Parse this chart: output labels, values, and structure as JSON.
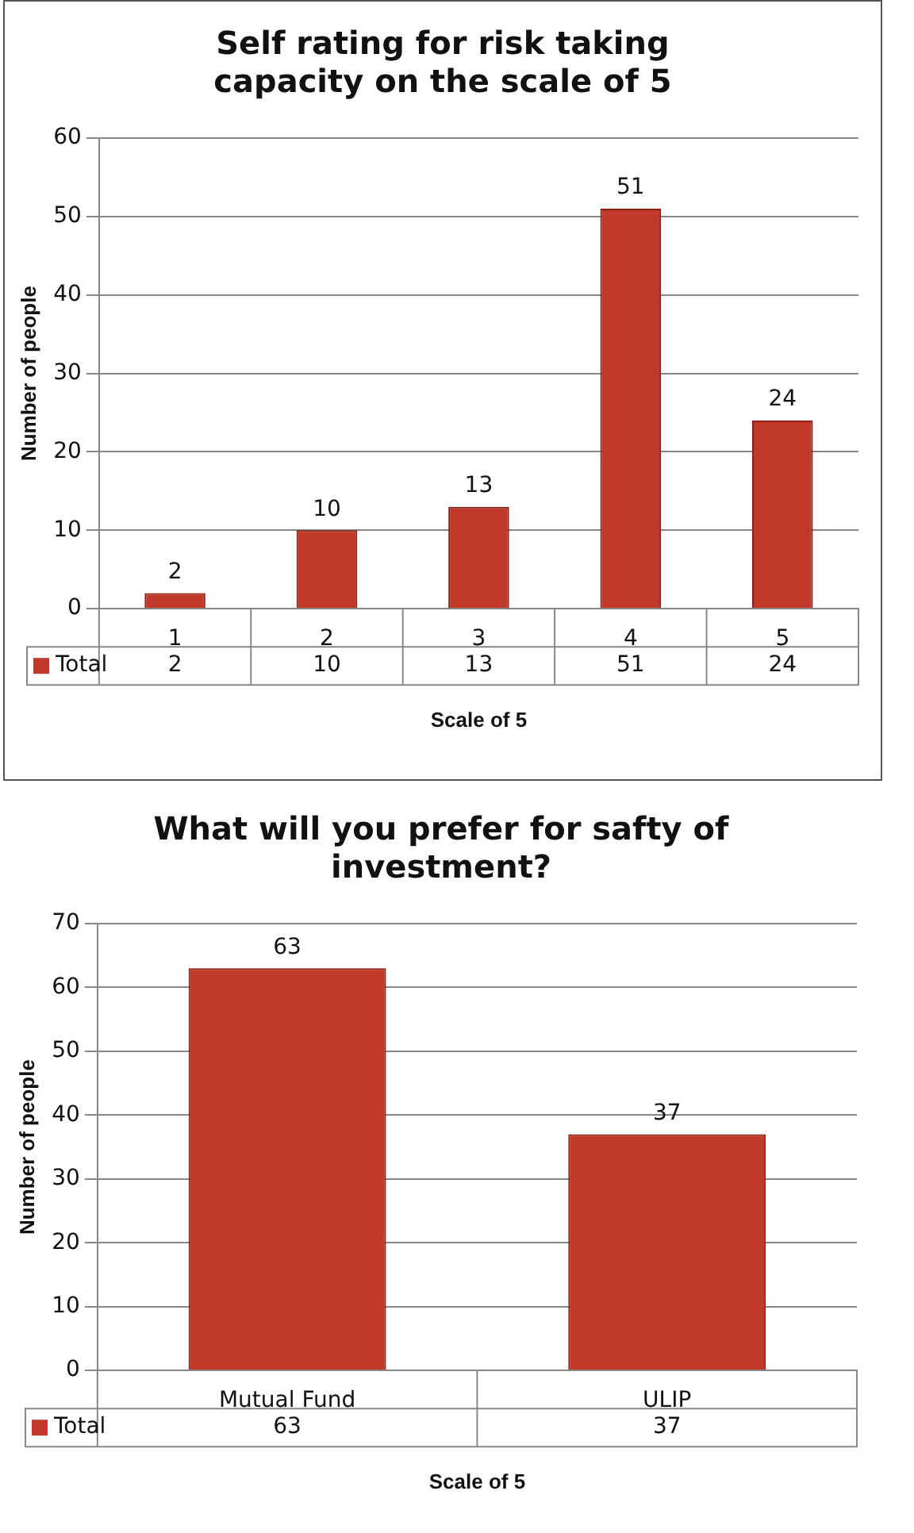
{
  "chart_data": [
    {
      "type": "bar",
      "title": "Self rating for risk taking capacity on the scale of 5",
      "xlabel": "Scale of 5",
      "ylabel": "Number of people",
      "categories": [
        "1",
        "2",
        "3",
        "4",
        "5"
      ],
      "series": [
        {
          "name": "Total",
          "color": "#c0392b",
          "values": [
            2,
            10,
            13,
            51,
            24
          ]
        }
      ],
      "annotations": [
        "2",
        "10",
        "13",
        "51",
        "24"
      ],
      "ylim": [
        0,
        60
      ],
      "yticks": [
        0,
        10,
        20,
        30,
        40,
        50,
        60
      ],
      "grid": "y",
      "legend": "bottom",
      "data_labels": true
    },
    {
      "type": "bar",
      "title": "What will you prefer for safty of investment?",
      "xlabel": "Scale of 5",
      "ylabel": "Number of people",
      "categories": [
        "Mutual Fund",
        "ULIP"
      ],
      "series": [
        {
          "name": "Total",
          "color": "#c0392b",
          "values": [
            63,
            37
          ]
        }
      ],
      "annotations": [
        "63",
        "37"
      ],
      "ylim": [
        0,
        70
      ],
      "yticks": [
        0,
        10,
        20,
        30,
        40,
        50,
        60,
        70
      ],
      "grid": "y",
      "legend": "bottom",
      "data_labels": true
    }
  ]
}
